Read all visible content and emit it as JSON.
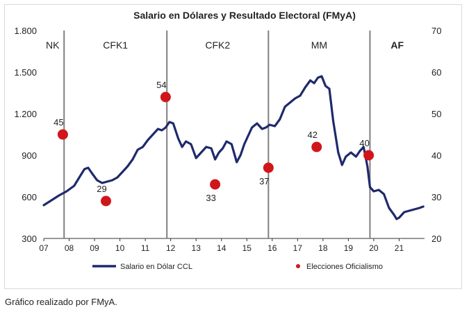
{
  "caption": "Gráfico realizado por FMyA.",
  "colors": {
    "line": "#1f2a6b",
    "dots": "#d0161b",
    "dividers": "#7f7f7f",
    "axis": "#333333"
  },
  "chart_data": {
    "type": "line",
    "title": "Salario en Dólares y Resultado Electoral (FMyA)",
    "x_ticks": [
      "07",
      "08",
      "09",
      "10",
      "11",
      "12",
      "13",
      "14",
      "15",
      "16",
      "17",
      "18",
      "19",
      "20",
      "21"
    ],
    "y_left": {
      "ticks": [
        "1.800",
        "1.500",
        "1.200",
        "900",
        "600",
        "300"
      ],
      "range": [
        300,
        1800
      ]
    },
    "y_right": {
      "ticks": [
        "70",
        "60",
        "50",
        "40",
        "30",
        "20"
      ],
      "range": [
        20,
        70
      ]
    },
    "periods": [
      "NK",
      "CFK1",
      "CFK2",
      "MM",
      "AF"
    ],
    "period_dividers": [
      2007.8,
      2011.85,
      2015.85,
      2019.85
    ],
    "legend": [
      "Salario en Dólar CCL",
      "Elecciones Oficialismo"
    ],
    "series": [
      {
        "name": "Salario en Dólar CCL",
        "axis": "left",
        "x": [
          2007.0,
          2007.3,
          2007.6,
          2007.9,
          2008.2,
          2008.4,
          2008.6,
          2008.75,
          2008.9,
          2009.1,
          2009.3,
          2009.5,
          2009.7,
          2009.9,
          2010.1,
          2010.3,
          2010.5,
          2010.7,
          2010.9,
          2011.1,
          2011.3,
          2011.5,
          2011.65,
          2011.8,
          2011.95,
          2012.1,
          2012.3,
          2012.45,
          2012.6,
          2012.8,
          2013.0,
          2013.2,
          2013.4,
          2013.6,
          2013.75,
          2013.9,
          2014.05,
          2014.2,
          2014.4,
          2014.6,
          2014.75,
          2014.9,
          2015.05,
          2015.2,
          2015.4,
          2015.6,
          2015.75,
          2015.9,
          2016.1,
          2016.3,
          2016.5,
          2016.7,
          2016.9,
          2017.1,
          2017.3,
          2017.5,
          2017.65,
          2017.8,
          2017.95,
          2018.1,
          2018.25,
          2018.4,
          2018.6,
          2018.75,
          2018.9,
          2019.1,
          2019.3,
          2019.45,
          2019.6,
          2019.75,
          2019.85,
          2020.0,
          2020.2,
          2020.4,
          2020.6,
          2020.8,
          2020.9,
          2021.0,
          2021.2,
          2021.4,
          2021.6,
          2021.8,
          2021.95
        ],
        "values": [
          540,
          575,
          610,
          640,
          680,
          740,
          800,
          810,
          770,
          720,
          700,
          710,
          720,
          740,
          780,
          820,
          870,
          940,
          960,
          1010,
          1050,
          1090,
          1080,
          1100,
          1140,
          1130,
          1020,
          960,
          1000,
          980,
          880,
          920,
          960,
          950,
          870,
          920,
          950,
          1000,
          980,
          850,
          900,
          980,
          1040,
          1100,
          1130,
          1090,
          1100,
          1120,
          1110,
          1160,
          1250,
          1280,
          1310,
          1330,
          1390,
          1440,
          1420,
          1460,
          1470,
          1400,
          1380,
          1150,
          920,
          830,
          890,
          920,
          890,
          930,
          960,
          820,
          670,
          640,
          650,
          620,
          520,
          470,
          440,
          450,
          490,
          500,
          510,
          520,
          530
        ]
      },
      {
        "name": "Elecciones Oficialismo",
        "axis": "right",
        "type": "scatter",
        "x": [
          2007.75,
          2009.45,
          2011.8,
          2013.75,
          2015.85,
          2017.75,
          2019.8
        ],
        "values": [
          45,
          29,
          54,
          33,
          37,
          42,
          40
        ],
        "labels": [
          "45",
          "29",
          "54",
          "33",
          "37",
          "42",
          "40"
        ],
        "label_pos": [
          "above",
          "above",
          "above",
          "below",
          "below",
          "above",
          "above"
        ]
      }
    ]
  }
}
